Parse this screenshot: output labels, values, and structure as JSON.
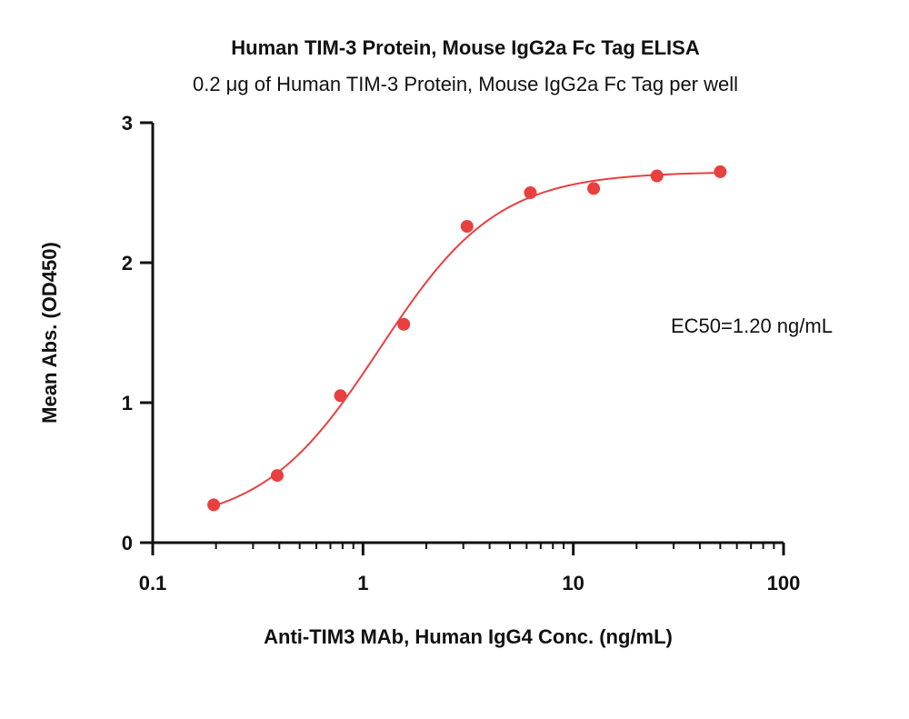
{
  "chart_data": {
    "type": "scatter",
    "title": "Human TIM-3 Protein, Mouse IgG2a Fc Tag ELISA",
    "subtitle": "0.2 μg of Human TIM-3 Protein, Mouse IgG2a Fc Tag per well",
    "xlabel": "Anti-TIM3 MAb, Human IgG4 Conc. (ng/mL)",
    "ylabel": "Mean Abs. (OD450)",
    "x_scale": "log",
    "xlim": [
      0.1,
      100
    ],
    "ylim": [
      0,
      3
    ],
    "x_ticks": [
      "0.1",
      "1",
      "10",
      "100"
    ],
    "y_ticks": [
      "0",
      "1",
      "2",
      "3"
    ],
    "annotation": "EC50=1.20 ng/mL",
    "colors": {
      "series": "#e8403f"
    },
    "series": [
      {
        "x": [
          0.195,
          0.391,
          0.781,
          1.5625,
          3.125,
          6.25,
          12.5,
          25,
          50
        ],
        "y": [
          0.27,
          0.48,
          1.05,
          1.56,
          2.26,
          2.5,
          2.53,
          2.62,
          2.65
        ],
        "fit": {
          "bottom": 0.12,
          "top": 2.65,
          "ec50": 1.2,
          "hill": 1.55
        }
      }
    ],
    "grid": false
  }
}
